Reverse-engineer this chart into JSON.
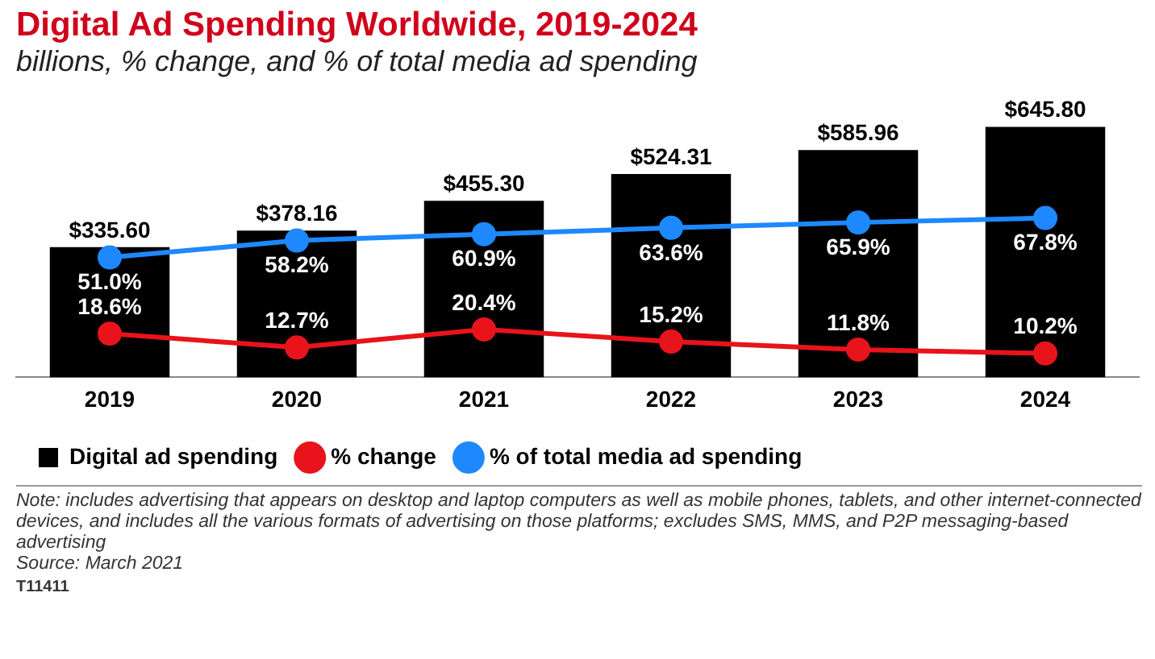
{
  "chart_data": {
    "type": "bar",
    "title": "Digital Ad Spending Worldwide, 2019-2024",
    "subtitle": "billions, % change, and % of total media ad spending",
    "categories": [
      "2019",
      "2020",
      "2021",
      "2022",
      "2023",
      "2024"
    ],
    "series": [
      {
        "name": "Digital ad spending",
        "color": "#000000",
        "values": [
          335.6,
          378.16,
          455.3,
          524.31,
          585.96,
          645.8
        ],
        "value_labels": [
          "$335.60",
          "$378.16",
          "$455.30",
          "$524.31",
          "$585.96",
          "$645.80"
        ]
      },
      {
        "name": "% change",
        "type": "line",
        "axis": "y2",
        "color": "#e8131b",
        "values": [
          18.6,
          12.7,
          20.4,
          15.2,
          11.8,
          10.2
        ],
        "value_labels": [
          "18.6%",
          "12.7%",
          "20.4%",
          "15.2%",
          "11.8%",
          "10.2%"
        ]
      },
      {
        "name": "% of total media ad spending",
        "type": "line",
        "axis": "y2",
        "color": "#1e88ff",
        "values": [
          51.0,
          58.2,
          60.9,
          63.6,
          65.9,
          67.8
        ],
        "value_labels": [
          "51.0%",
          "58.2%",
          "60.9%",
          "63.6%",
          "65.9%",
          "67.8%"
        ]
      }
    ],
    "tick_labels": "x",
    "grid": false,
    "legend": "bottom",
    "marker": "circle",
    "annotations": [
      "Note: includes advertising that appears on desktop and laptop computers as well as mobile phones, tablets, and other internet-connected devices, and includes all the various formats of advertising on those platforms; excludes SMS, MMS, and P2P messaging-based advertising",
      "Source: March 2021",
      "T11411"
    ]
  }
}
